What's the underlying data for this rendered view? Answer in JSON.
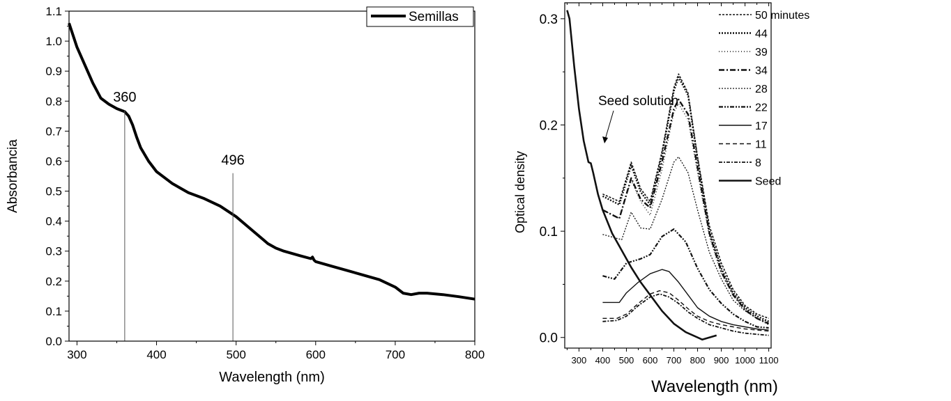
{
  "chart_data": [
    {
      "type": "line",
      "title": "",
      "xlabel": "Wavelength (nm)",
      "ylabel": "Absorbancia",
      "xlim": [
        290,
        800
      ],
      "ylim": [
        0.0,
        1.1
      ],
      "xticks": [
        300,
        400,
        500,
        600,
        700,
        800
      ],
      "yticks": [
        "0.0",
        "0.1",
        "0.2",
        "0.3",
        "0.4",
        "0.5",
        "0.6",
        "0.7",
        "0.8",
        "0.9",
        "1.0",
        "1.1"
      ],
      "legend": {
        "position": "top-right",
        "entries": [
          "Semillas"
        ]
      },
      "series": [
        {
          "name": "Semillas",
          "color": "#000000",
          "x": [
            290,
            300,
            310,
            320,
            330,
            340,
            350,
            355,
            360,
            365,
            370,
            375,
            380,
            390,
            400,
            420,
            440,
            460,
            480,
            500,
            520,
            540,
            550,
            560,
            580,
            594,
            596,
            598,
            600,
            620,
            640,
            660,
            680,
            700,
            710,
            720,
            730,
            740,
            760,
            780,
            800
          ],
          "y": [
            1.06,
            0.98,
            0.92,
            0.86,
            0.81,
            0.79,
            0.775,
            0.77,
            0.765,
            0.75,
            0.72,
            0.68,
            0.645,
            0.6,
            0.565,
            0.525,
            0.495,
            0.475,
            0.45,
            0.415,
            0.37,
            0.325,
            0.31,
            0.3,
            0.285,
            0.275,
            0.28,
            0.27,
            0.265,
            0.25,
            0.235,
            0.22,
            0.205,
            0.18,
            0.16,
            0.155,
            0.16,
            0.16,
            0.155,
            0.148,
            0.14
          ]
        }
      ],
      "annotations": [
        {
          "label": "360",
          "x": 360,
          "y_top": 0.77
        },
        {
          "label": "496",
          "x": 496,
          "y_top": 0.56
        }
      ]
    },
    {
      "type": "line",
      "title": "",
      "xlabel": "Wavelength (nm)",
      "ylabel": "Optical density",
      "xlim": [
        240,
        1110
      ],
      "ylim": [
        -0.01,
        0.315
      ],
      "xticks": [
        300,
        400,
        500,
        600,
        700,
        800,
        900,
        1000,
        1100
      ],
      "yticks": [
        "0.0",
        "0.1",
        "0.2",
        "0.3"
      ],
      "legend": {
        "position": "top-right",
        "entries": [
          "50 minutes",
          "44",
          "39",
          "34",
          "28",
          "22",
          "17",
          "11",
          "8",
          "Seed"
        ]
      },
      "annotation": {
        "label": "Seed solution"
      },
      "series": [
        {
          "name": "50 minutes",
          "dash": "3,2",
          "width": 1.6,
          "x": [
            400,
            470,
            520,
            560,
            600,
            650,
            700,
            720,
            760,
            800,
            850,
            900,
            950,
            1000,
            1050,
            1100
          ],
          "y": [
            0.135,
            0.128,
            0.165,
            0.14,
            0.128,
            0.175,
            0.235,
            0.248,
            0.23,
            0.17,
            0.105,
            0.07,
            0.045,
            0.03,
            0.022,
            0.018
          ]
        },
        {
          "name": "44",
          "dash": "2,2",
          "width": 2.4,
          "x": [
            400,
            470,
            520,
            560,
            600,
            650,
            700,
            720,
            760,
            800,
            850,
            900,
            950,
            1000,
            1050,
            1100
          ],
          "y": [
            0.133,
            0.125,
            0.162,
            0.137,
            0.125,
            0.172,
            0.232,
            0.245,
            0.228,
            0.168,
            0.1,
            0.065,
            0.042,
            0.028,
            0.02,
            0.015
          ]
        },
        {
          "name": "39",
          "dash": "1,3",
          "width": 1.4,
          "x": [
            400,
            470,
            520,
            560,
            600,
            650,
            700,
            720,
            760,
            800,
            850,
            900,
            950,
            1000,
            1050,
            1100
          ],
          "y": [
            0.12,
            0.112,
            0.148,
            0.128,
            0.115,
            0.158,
            0.212,
            0.22,
            0.205,
            0.155,
            0.095,
            0.06,
            0.04,
            0.026,
            0.018,
            0.014
          ]
        },
        {
          "name": "34",
          "dash": "8,3,2,3",
          "width": 2.4,
          "x": [
            400,
            470,
            520,
            560,
            600,
            650,
            700,
            720,
            760,
            800,
            850,
            900,
            950,
            1000,
            1050,
            1100
          ],
          "y": [
            0.12,
            0.112,
            0.15,
            0.13,
            0.122,
            0.165,
            0.215,
            0.224,
            0.21,
            0.16,
            0.098,
            0.062,
            0.04,
            0.026,
            0.018,
            0.013
          ]
        },
        {
          "name": "28",
          "dash": "2,2",
          "width": 1.3,
          "x": [
            400,
            480,
            520,
            560,
            600,
            650,
            700,
            720,
            760,
            800,
            850,
            900,
            950,
            1000,
            1050,
            1100
          ],
          "y": [
            0.097,
            0.092,
            0.118,
            0.103,
            0.102,
            0.13,
            0.165,
            0.17,
            0.155,
            0.12,
            0.08,
            0.055,
            0.035,
            0.025,
            0.018,
            0.012
          ]
        },
        {
          "name": "22",
          "dash": "6,2,2,2,2,2",
          "width": 2.2,
          "x": [
            400,
            450,
            500,
            560,
            600,
            650,
            700,
            750,
            800,
            850,
            900,
            950,
            1000,
            1050,
            1100
          ],
          "y": [
            0.058,
            0.055,
            0.07,
            0.074,
            0.078,
            0.095,
            0.102,
            0.09,
            0.065,
            0.045,
            0.032,
            0.022,
            0.015,
            0.01,
            0.009
          ]
        },
        {
          "name": "17",
          "dash": "",
          "width": 1.4,
          "x": [
            400,
            470,
            500,
            550,
            600,
            650,
            680,
            720,
            760,
            800,
            850,
            900,
            950,
            1000,
            1050,
            1100
          ],
          "y": [
            0.033,
            0.033,
            0.042,
            0.052,
            0.06,
            0.064,
            0.062,
            0.052,
            0.04,
            0.028,
            0.02,
            0.015,
            0.012,
            0.01,
            0.008,
            0.007
          ]
        },
        {
          "name": "11",
          "dash": "6,4",
          "width": 1.4,
          "x": [
            400,
            460,
            500,
            550,
            600,
            640,
            680,
            720,
            760,
            800,
            850,
            900,
            950,
            1000,
            1050,
            1100
          ],
          "y": [
            0.018,
            0.018,
            0.022,
            0.032,
            0.041,
            0.044,
            0.042,
            0.035,
            0.027,
            0.02,
            0.015,
            0.012,
            0.01,
            0.008,
            0.007,
            0.006
          ]
        },
        {
          "name": "8",
          "dash": "5,2,2,2",
          "width": 1.8,
          "x": [
            400,
            460,
            500,
            550,
            600,
            640,
            680,
            720,
            760,
            800,
            850,
            900,
            950,
            1000,
            1050,
            1100
          ],
          "y": [
            0.015,
            0.016,
            0.02,
            0.03,
            0.038,
            0.041,
            0.038,
            0.032,
            0.024,
            0.018,
            0.012,
            0.009,
            0.006,
            0.004,
            0.003,
            0.002
          ]
        },
        {
          "name": "Seed",
          "dash": "",
          "width": 2.6,
          "x": [
            250,
            260,
            280,
            300,
            320,
            340,
            350,
            360,
            380,
            400,
            440,
            480,
            520,
            560,
            600,
            650,
            700,
            750,
            800,
            820,
            850,
            880
          ],
          "y": [
            0.308,
            0.3,
            0.255,
            0.215,
            0.185,
            0.165,
            0.164,
            0.155,
            0.135,
            0.12,
            0.098,
            0.082,
            0.066,
            0.052,
            0.04,
            0.025,
            0.013,
            0.005,
            0.0,
            -0.002,
            0.0,
            0.002
          ]
        }
      ]
    }
  ]
}
